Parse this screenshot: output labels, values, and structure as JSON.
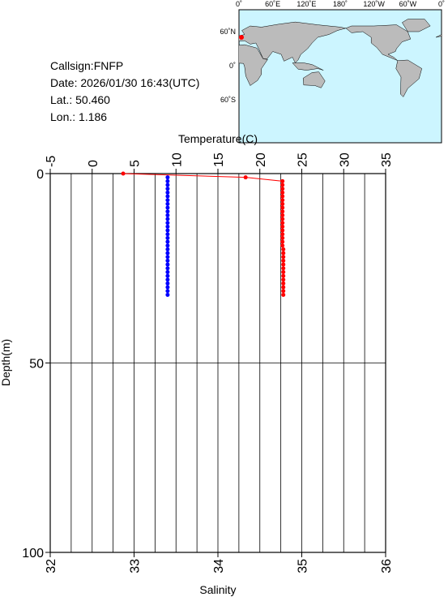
{
  "info": [
    "Callsign:FNFP",
    "Date:  2026/01/30 16:43(UTC)",
    "Lat.:   50.460",
    "Lon.:     1.186"
  ],
  "map": {
    "lon_labels": [
      "0˚",
      "60˚E",
      "120˚E",
      "180˚",
      "120˚W",
      "60˚W",
      "0˚"
    ],
    "lat_labels": [
      "60˚N",
      "0˚",
      "60˚S"
    ]
  },
  "chart_data": {
    "type": "line",
    "xlabel": "Temperature(C)",
    "x2label": "Salinity",
    "ylabel": "Depth(m)",
    "xlim": [
      -5,
      35
    ],
    "xticks": [
      -5,
      0,
      5,
      10,
      15,
      20,
      25,
      30,
      35
    ],
    "x2lim": [
      32,
      36
    ],
    "x2ticks": [
      32,
      33,
      34,
      35,
      36
    ],
    "ylim": [
      0,
      100
    ],
    "yticks": [
      0,
      50,
      100
    ],
    "y_inverted": true,
    "xgrid": [
      -2.5,
      0,
      2.5,
      5,
      7.5,
      10,
      12.5,
      15,
      17.5,
      20,
      22.5,
      25,
      27.5,
      30,
      32.5
    ],
    "ygrid": [
      50
    ],
    "series": [
      {
        "color": "#ff0000",
        "axis": "x",
        "depth": [
          0,
          1,
          2,
          3,
          4,
          5,
          6,
          7,
          8,
          9,
          10,
          11,
          12,
          13,
          14,
          15,
          16,
          17,
          18,
          19,
          20,
          21,
          22,
          23,
          24,
          25,
          26,
          27,
          28,
          29,
          30,
          31,
          32
        ],
        "values": [
          3.7,
          18.3,
          22.7,
          22.7,
          22.7,
          22.7,
          22.7,
          22.7,
          22.7,
          22.7,
          22.7,
          22.7,
          22.7,
          22.7,
          22.7,
          22.7,
          22.7,
          22.7,
          22.7,
          22.7,
          22.8,
          22.8,
          22.8,
          22.8,
          22.8,
          22.8,
          22.8,
          22.8,
          22.8,
          22.8,
          22.8,
          22.8,
          22.8
        ]
      },
      {
        "color": "#0000ff",
        "axis": "x2",
        "depth": [
          1,
          2,
          3,
          4,
          5,
          6,
          7,
          8,
          9,
          10,
          11,
          12,
          13,
          14,
          15,
          16,
          17,
          18,
          19,
          20,
          21,
          22,
          23,
          24,
          25,
          26,
          27,
          28,
          29,
          30,
          31,
          32
        ],
        "values": [
          33.4,
          33.4,
          33.4,
          33.4,
          33.4,
          33.4,
          33.4,
          33.4,
          33.4,
          33.4,
          33.4,
          33.4,
          33.4,
          33.4,
          33.4,
          33.4,
          33.4,
          33.4,
          33.4,
          33.4,
          33.4,
          33.4,
          33.4,
          33.4,
          33.4,
          33.4,
          33.4,
          33.4,
          33.4,
          33.4,
          33.4,
          33.4
        ]
      }
    ]
  }
}
